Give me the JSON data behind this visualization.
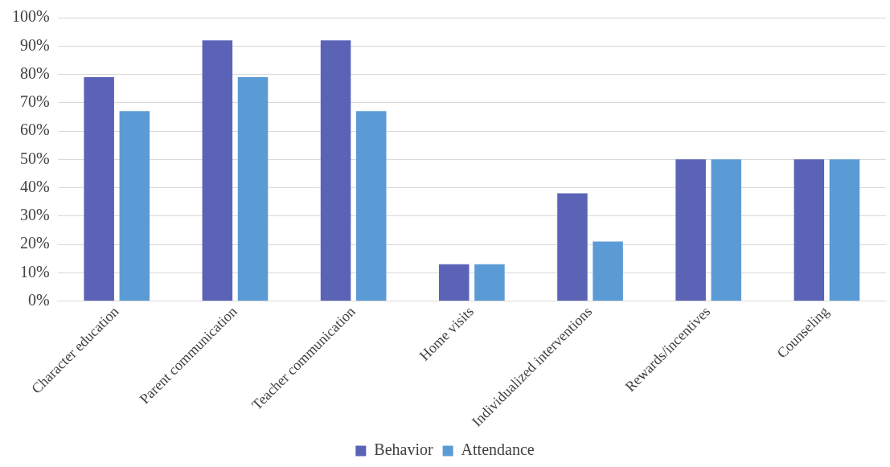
{
  "chart_data": {
    "type": "bar",
    "categories": [
      "Character education",
      "Parent communication",
      "Teacher communication",
      "Home visits",
      "Individualized interventions",
      "Rewards/incentives",
      "Counseling"
    ],
    "series": [
      {
        "name": "Behavior",
        "color": "#5b63b7",
        "values": [
          79,
          92,
          92,
          13,
          38,
          50,
          50
        ]
      },
      {
        "name": "Attendance",
        "color": "#5b9bd5",
        "values": [
          67,
          79,
          67,
          13,
          21,
          50,
          50
        ]
      }
    ],
    "ylim": [
      0,
      100
    ],
    "yticks": [
      {
        "value": 0,
        "label": "0%"
      },
      {
        "value": 10,
        "label": "10%"
      },
      {
        "value": 20,
        "label": "20%"
      },
      {
        "value": 30,
        "label": "30%"
      },
      {
        "value": 40,
        "label": "40%"
      },
      {
        "value": 50,
        "label": "50%"
      },
      {
        "value": 60,
        "label": "60%"
      },
      {
        "value": 70,
        "label": "70%"
      },
      {
        "value": 80,
        "label": "80%"
      },
      {
        "value": 90,
        "label": "90%"
      },
      {
        "value": 100,
        "label": "100%"
      }
    ],
    "grid": "y",
    "legend": "bottom"
  }
}
